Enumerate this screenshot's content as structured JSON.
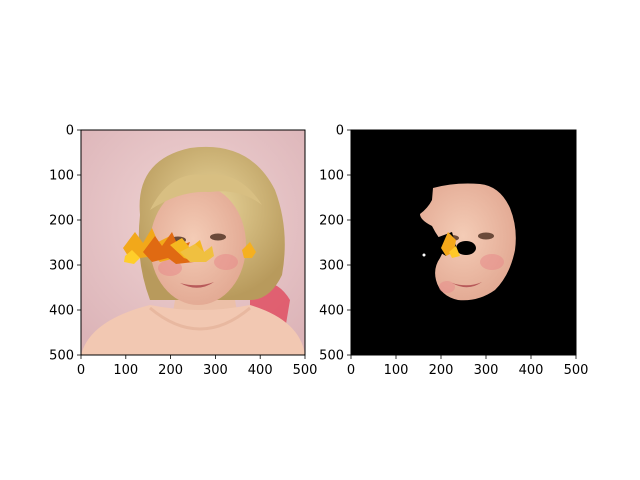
{
  "figure": {
    "background": "#ffffff"
  },
  "chart_data": [
    {
      "type": "image",
      "content": "portrait photo of a blonde woman with orange autumn-leaf overlays across the face",
      "xlim": [
        0,
        500
      ],
      "ylim": [
        500,
        0
      ],
      "xticks": [
        0,
        100,
        200,
        300,
        400,
        500
      ],
      "yticks": [
        0,
        100,
        200,
        300,
        400,
        500
      ],
      "xtick_labels": [
        "0",
        "100",
        "200",
        "300",
        "400",
        "500"
      ],
      "ytick_labels": [
        "0",
        "100",
        "200",
        "300",
        "400",
        "500"
      ],
      "title": "",
      "xlabel": "",
      "ylabel": "",
      "colors": {
        "background": "#e8c8c8",
        "hair": "#d9c080",
        "skin": "#eec0a8",
        "leaf": "#f0a010"
      }
    },
    {
      "type": "image",
      "content": "segmentation mask: face region of the same portrait on a black background, with holes where the leaves occlude it",
      "xlim": [
        0,
        500
      ],
      "ylim": [
        500,
        0
      ],
      "xticks": [
        0,
        100,
        200,
        300,
        400,
        500
      ],
      "yticks": [
        0,
        100,
        200,
        300,
        400,
        500
      ],
      "xtick_labels": [
        "0",
        "100",
        "200",
        "300",
        "400",
        "500"
      ],
      "ytick_labels": [
        "0",
        "100",
        "200",
        "300",
        "400",
        "500"
      ],
      "title": "",
      "xlabel": "",
      "ylabel": "",
      "colors": {
        "background": "#000000",
        "skin": "#eec0a8",
        "leaf": "#f0a010"
      }
    }
  ]
}
